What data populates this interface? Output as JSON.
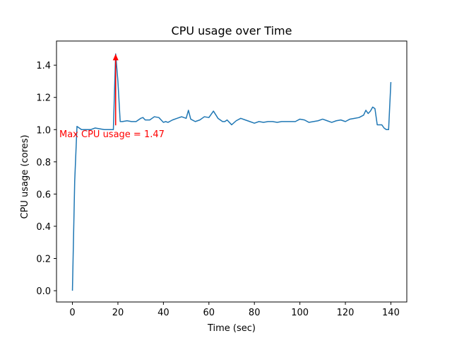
{
  "chart_data": {
    "type": "line",
    "title": "CPU usage over Time",
    "xlabel": "Time (sec)",
    "ylabel": "CPU usage (cores)",
    "xlim": [
      -7,
      147
    ],
    "ylim": [
      -0.07,
      1.55
    ],
    "xticks": [
      0,
      20,
      40,
      60,
      80,
      100,
      120,
      140
    ],
    "yticks": [
      0.0,
      0.2,
      0.4,
      0.6,
      0.8,
      1.0,
      1.2,
      1.4
    ],
    "xtick_labels": [
      "0",
      "20",
      "40",
      "60",
      "80",
      "100",
      "120",
      "140"
    ],
    "ytick_labels": [
      "0.0",
      "0.2",
      "0.4",
      "0.6",
      "0.8",
      "1.0",
      "1.2",
      "1.4"
    ],
    "grid": false,
    "series": [
      {
        "color": "#1f77b4",
        "x": [
          0,
          1,
          2,
          3,
          4,
          6,
          8,
          10,
          12,
          14,
          16,
          18,
          19,
          20,
          21,
          22,
          24,
          26,
          28,
          30,
          31,
          32,
          34,
          36,
          38,
          39,
          40,
          41,
          42,
          44,
          46,
          48,
          50,
          51,
          52,
          54,
          56,
          58,
          60,
          62,
          64,
          66,
          67,
          68,
          70,
          72,
          74,
          76,
          78,
          80,
          82,
          84,
          86,
          88,
          90,
          92,
          94,
          96,
          98,
          100,
          102,
          104,
          106,
          108,
          110,
          112,
          114,
          116,
          118,
          120,
          122,
          124,
          126,
          128,
          129,
          130,
          131,
          132,
          133,
          134,
          136,
          137,
          138,
          139,
          140
        ],
        "y": [
          0.0,
          0.68,
          1.02,
          1.01,
          1.0,
          1.0,
          1.0,
          1.01,
          1.005,
          1.0,
          1.0,
          1.0,
          1.47,
          1.3,
          1.05,
          1.05,
          1.055,
          1.05,
          1.05,
          1.07,
          1.075,
          1.06,
          1.06,
          1.08,
          1.075,
          1.06,
          1.045,
          1.05,
          1.045,
          1.06,
          1.07,
          1.08,
          1.07,
          1.12,
          1.065,
          1.05,
          1.06,
          1.08,
          1.075,
          1.115,
          1.07,
          1.05,
          1.05,
          1.06,
          1.03,
          1.055,
          1.07,
          1.06,
          1.05,
          1.04,
          1.05,
          1.045,
          1.05,
          1.05,
          1.045,
          1.05,
          1.05,
          1.05,
          1.05,
          1.065,
          1.06,
          1.045,
          1.05,
          1.055,
          1.065,
          1.055,
          1.045,
          1.055,
          1.06,
          1.05,
          1.065,
          1.07,
          1.075,
          1.09,
          1.12,
          1.1,
          1.115,
          1.14,
          1.13,
          1.03,
          1.03,
          1.01,
          1.0,
          1.0,
          1.295
        ]
      }
    ],
    "annotation": {
      "text": "Max CPU usage = 1.47",
      "color": "#ff0000",
      "x": 19,
      "y": 1.47,
      "text_x": -7,
      "text_y": 0.975
    }
  }
}
